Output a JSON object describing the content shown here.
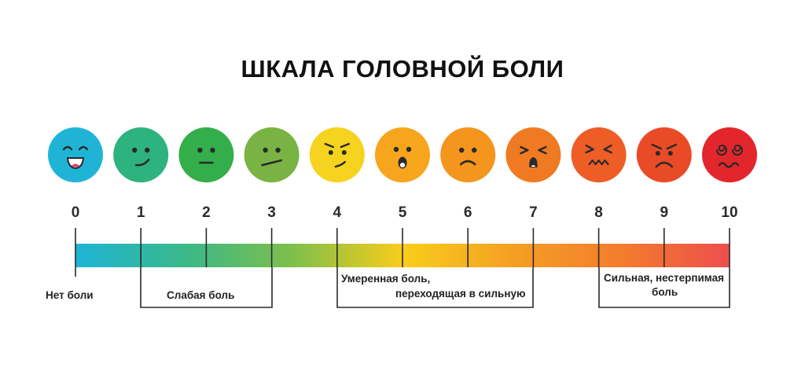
{
  "title": "ШКАЛА ГОЛОВНОЙ БОЛИ",
  "levels": [
    {
      "value": "0",
      "color": "#1fb4d6",
      "face": "laughing-face-icon"
    },
    {
      "value": "1",
      "color": "#2db37e",
      "face": "smirk-face-icon"
    },
    {
      "value": "2",
      "color": "#34ae4a",
      "face": "neutral-face-icon"
    },
    {
      "value": "3",
      "color": "#79b343",
      "face": "uneasy-face-icon"
    },
    {
      "value": "4",
      "color": "#f6d31f",
      "face": "annoyed-face-icon"
    },
    {
      "value": "5",
      "color": "#f7a51d",
      "face": "shocked-face-icon"
    },
    {
      "value": "6",
      "color": "#f4951e",
      "face": "sad-face-icon"
    },
    {
      "value": "7",
      "color": "#f07a22",
      "face": "squinting-face-icon"
    },
    {
      "value": "8",
      "color": "#ee5d26",
      "face": "grimacing-face-icon"
    },
    {
      "value": "9",
      "color": "#ea4b27",
      "face": "crying-frown-face-icon"
    },
    {
      "value": "10",
      "color": "#e2262c",
      "face": "dizzy-face-icon"
    }
  ],
  "gradient_colors": [
    "#1eb5d6",
    "#3ab889",
    "#7fbf4a",
    "#f9cd1c",
    "#f5a023",
    "#f37d2d",
    "#ed4e4c"
  ],
  "categories": {
    "none": "Нет боли",
    "mild": "Слабая боль",
    "moderate_line1": "Умеренная боль,",
    "moderate_line2": "переходящая в сильную",
    "severe_line1": "Сильная, нестерпимая",
    "severe_line2": "боль"
  }
}
